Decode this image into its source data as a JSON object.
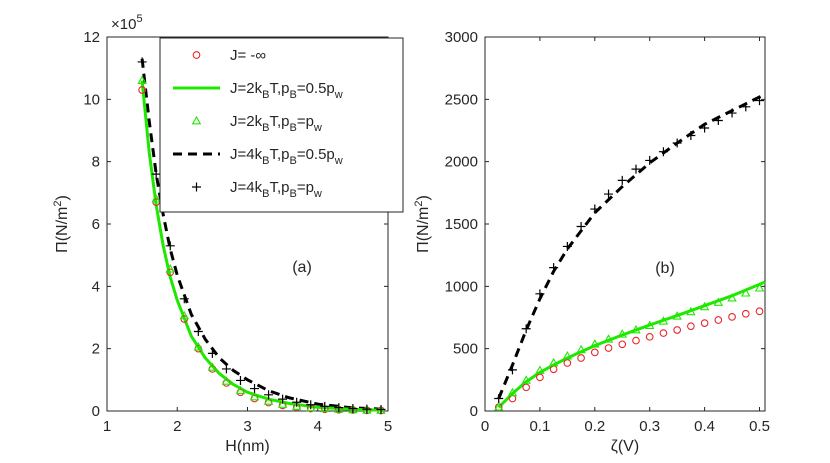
{
  "chart_data": [
    {
      "type": "line",
      "panel_label": "(a)",
      "xlabel": "H(nm)",
      "ylabel_main": "Π(N/m",
      "ylabel_sup": "2",
      "ylabel_tail": ")",
      "y_multiplier": "×10",
      "y_multiplier_exp": "5",
      "xlim": [
        1,
        5
      ],
      "ylim": [
        0,
        12
      ],
      "xticks": [
        1,
        2,
        3,
        4,
        5
      ],
      "yticks": [
        0,
        2,
        4,
        6,
        8,
        10,
        12
      ],
      "legend_position": "top-right",
      "series": [
        {
          "name": "J= -∞",
          "style": "red-circle",
          "x": [
            1.5,
            1.7,
            1.9,
            2.1,
            2.3,
            2.5,
            2.7,
            2.9,
            3.1,
            3.3,
            3.5,
            3.7,
            3.9,
            4.1,
            4.3,
            4.5,
            4.7,
            4.9
          ],
          "y": [
            10.3,
            6.7,
            4.45,
            2.95,
            2.0,
            1.35,
            0.9,
            0.6,
            0.4,
            0.27,
            0.18,
            0.12,
            0.08,
            0.055,
            0.04,
            0.03,
            0.02,
            0.015
          ]
        },
        {
          "name": "J=2k_BT,p_B=0.5p_w",
          "style": "green-line",
          "x": [
            1.5,
            1.6,
            1.7,
            1.8,
            1.9,
            2.0,
            2.2,
            2.4,
            2.6,
            2.8,
            3.0,
            3.3,
            3.6,
            4.0,
            4.5,
            4.9
          ],
          "y": [
            10.6,
            8.3,
            6.6,
            5.3,
            4.3,
            3.55,
            2.4,
            1.7,
            1.2,
            0.85,
            0.6,
            0.38,
            0.24,
            0.12,
            0.05,
            0.03
          ]
        },
        {
          "name": "J=2k_BT,p_B=p_w",
          "style": "green-triangle",
          "x": [
            1.5,
            1.7,
            1.9,
            2.1,
            2.3,
            2.5,
            2.7,
            2.9,
            3.1,
            3.3,
            3.5,
            3.7,
            3.9,
            4.1,
            4.3,
            4.5,
            4.7,
            4.9
          ],
          "y": [
            10.6,
            6.8,
            4.55,
            3.05,
            2.05,
            1.4,
            0.95,
            0.65,
            0.45,
            0.31,
            0.21,
            0.14,
            0.1,
            0.07,
            0.05,
            0.035,
            0.025,
            0.02
          ]
        },
        {
          "name": "J=4k_BT,p_B=0.5p_w",
          "style": "black-dash",
          "x": [
            1.5,
            1.6,
            1.7,
            1.8,
            1.9,
            2.0,
            2.2,
            2.4,
            2.6,
            2.8,
            3.0,
            3.3,
            3.6,
            4.0,
            4.5,
            4.9
          ],
          "y": [
            11.3,
            9.3,
            7.6,
            6.3,
            5.2,
            4.35,
            3.1,
            2.3,
            1.7,
            1.3,
            1.0,
            0.65,
            0.42,
            0.22,
            0.1,
            0.06
          ]
        },
        {
          "name": "J=4k_BT,p_B=p_w",
          "style": "black-plus",
          "x": [
            1.5,
            1.7,
            1.9,
            2.1,
            2.3,
            2.5,
            2.7,
            2.9,
            3.1,
            3.3,
            3.5,
            3.7,
            3.9,
            4.1,
            4.3,
            4.5,
            4.7,
            4.9
          ],
          "y": [
            11.2,
            7.6,
            5.3,
            3.6,
            2.55,
            1.85,
            1.35,
            0.98,
            0.72,
            0.52,
            0.38,
            0.28,
            0.2,
            0.15,
            0.11,
            0.08,
            0.06,
            0.05
          ]
        }
      ]
    },
    {
      "type": "line",
      "panel_label": "(b)",
      "xlabel": "ζ(V)",
      "ylabel_main": "Π(N/m",
      "ylabel_sup": "2",
      "ylabel_tail": ")",
      "xlim": [
        0,
        0.51
      ],
      "ylim": [
        0,
        3000
      ],
      "xticks": [
        0,
        0.1,
        0.2,
        0.3,
        0.4,
        0.5
      ],
      "yticks": [
        0,
        500,
        1000,
        1500,
        2000,
        2500,
        3000
      ],
      "series": [
        {
          "name": "J= -∞",
          "style": "red-circle",
          "x": [
            0.025,
            0.05,
            0.075,
            0.1,
            0.125,
            0.15,
            0.175,
            0.2,
            0.225,
            0.25,
            0.275,
            0.3,
            0.325,
            0.35,
            0.375,
            0.4,
            0.425,
            0.45,
            0.475,
            0.5
          ],
          "y": [
            30,
            100,
            190,
            270,
            335,
            385,
            425,
            470,
            505,
            535,
            565,
            595,
            625,
            650,
            680,
            705,
            730,
            755,
            780,
            800
          ]
        },
        {
          "name": "J=2k_BT,p_B=0.5p_w",
          "style": "green-line",
          "x": [
            0.025,
            0.05,
            0.075,
            0.1,
            0.125,
            0.15,
            0.2,
            0.25,
            0.3,
            0.35,
            0.4,
            0.45,
            0.51
          ],
          "y": [
            30,
            140,
            235,
            310,
            370,
            425,
            525,
            610,
            690,
            765,
            845,
            925,
            1035
          ]
        },
        {
          "name": "J=2k_BT,p_B=p_w",
          "style": "green-triangle",
          "x": [
            0.025,
            0.05,
            0.075,
            0.1,
            0.125,
            0.15,
            0.175,
            0.2,
            0.225,
            0.25,
            0.275,
            0.3,
            0.325,
            0.35,
            0.375,
            0.4,
            0.425,
            0.45,
            0.475,
            0.5
          ],
          "y": [
            30,
            145,
            245,
            325,
            385,
            440,
            490,
            535,
            575,
            615,
            650,
            685,
            720,
            760,
            795,
            835,
            870,
            905,
            945,
            985
          ]
        },
        {
          "name": "J=4k_BT,p_B=0.5p_w",
          "style": "black-dash",
          "x": [
            0.025,
            0.05,
            0.075,
            0.1,
            0.125,
            0.15,
            0.2,
            0.25,
            0.3,
            0.35,
            0.4,
            0.45,
            0.51
          ],
          "y": [
            100,
            370,
            650,
            900,
            1120,
            1300,
            1590,
            1800,
            1990,
            2150,
            2300,
            2410,
            2540
          ]
        },
        {
          "name": "J=4k_BT,p_B=p_w",
          "style": "black-plus",
          "x": [
            0.025,
            0.05,
            0.075,
            0.1,
            0.125,
            0.15,
            0.175,
            0.2,
            0.225,
            0.25,
            0.275,
            0.3,
            0.325,
            0.35,
            0.375,
            0.4,
            0.425,
            0.45,
            0.475,
            0.5
          ],
          "y": [
            100,
            330,
            660,
            940,
            1150,
            1320,
            1480,
            1620,
            1740,
            1850,
            1940,
            2010,
            2080,
            2150,
            2210,
            2270,
            2330,
            2390,
            2440,
            2490
          ]
        }
      ]
    }
  ],
  "legend": {
    "items": [
      {
        "pre": "J= -∞",
        "style": "red-circle"
      },
      {
        "pre": "J=2k",
        "sub1": "B",
        "mid": "T,p",
        "sub2": "B",
        "post": "=0.5p",
        "sub3": "w",
        "style": "green-line"
      },
      {
        "pre": "J=2k",
        "sub1": "B",
        "mid": "T,p",
        "sub2": "B",
        "post": "=p",
        "sub3": "w",
        "style": "green-triangle"
      },
      {
        "pre": "J=4k",
        "sub1": "B",
        "mid": "T,p",
        "sub2": "B",
        "post": "=0.5p",
        "sub3": "w",
        "style": "black-dash"
      },
      {
        "pre": "J=4k",
        "sub1": "B",
        "mid": "T,p",
        "sub2": "B",
        "post": "=p",
        "sub3": "w",
        "style": "black-plus"
      }
    ]
  },
  "colors": {
    "red": "#e8272b",
    "green": "#1fe800",
    "black": "#000000",
    "axis": "#262626"
  }
}
